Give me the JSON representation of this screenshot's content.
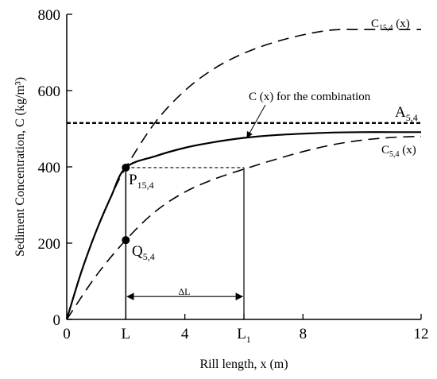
{
  "chart_data": {
    "type": "line",
    "title": "",
    "xlabel": "Rill length, x (m)",
    "ylabel": "Sediment Concentration, C (kg/m³)",
    "xlim": [
      0,
      12
    ],
    "ylim": [
      0,
      800
    ],
    "grid": false,
    "x_ticks": [
      {
        "value": 0,
        "label": "0"
      },
      {
        "value": 2,
        "label": "L"
      },
      {
        "value": 4,
        "label": "4"
      },
      {
        "value": 6,
        "label": "L₁"
      },
      {
        "value": 8,
        "label": "8"
      },
      {
        "value": 12,
        "label": "12"
      }
    ],
    "y_ticks": [
      {
        "value": 0,
        "label": "0"
      },
      {
        "value": 200,
        "label": "200"
      },
      {
        "value": 400,
        "label": "400"
      },
      {
        "value": 600,
        "label": "600"
      },
      {
        "value": 800,
        "label": "800"
      }
    ],
    "series": [
      {
        "name": "C₁₅,₄ (x)",
        "style": "dashed",
        "x": [
          0,
          0.5,
          1,
          1.5,
          2,
          3,
          4,
          5,
          6,
          7,
          8,
          9,
          10,
          11,
          12
        ],
        "y": [
          0,
          126,
          232,
          322,
          398,
          517,
          600,
          658,
          698,
          726,
          746,
          759,
          760,
          760,
          760
        ]
      },
      {
        "name": "C₅,₄ (x)",
        "style": "dashed",
        "x": [
          0,
          1,
          2,
          3,
          4,
          5,
          6,
          7,
          8,
          9,
          10,
          11,
          12
        ],
        "y": [
          0,
          115,
          208,
          283,
          334,
          368,
          394,
          418,
          440,
          458,
          470,
          477,
          480
        ]
      },
      {
        "name": "C (x) for the combination",
        "style": "solid",
        "x": [
          0,
          0.5,
          1,
          1.5,
          2,
          3,
          4,
          5,
          6,
          7,
          8,
          9,
          10,
          11,
          12
        ],
        "y": [
          0,
          126,
          232,
          322,
          398,
          428,
          450,
          465,
          476,
          483,
          487,
          490,
          491,
          491,
          491
        ]
      },
      {
        "name": "A₅,₄",
        "style": "dotted",
        "x": [
          0,
          12
        ],
        "y": [
          515,
          515
        ]
      }
    ],
    "points": [
      {
        "label": "P₁₅,₄",
        "x": 2,
        "y": 398
      },
      {
        "label": "Q₅,₄",
        "x": 2,
        "y": 208
      }
    ],
    "reference_lines": {
      "P_horizontal": {
        "x": [
          2,
          6
        ],
        "y": 398
      },
      "L1_vertical": {
        "x": 6,
        "y": [
          0,
          398
        ]
      },
      "L_vertical": {
        "x": 2,
        "y": [
          0,
          398
        ]
      }
    },
    "dimension": {
      "label": "ΔL",
      "x_start": 2,
      "x_end": 6,
      "y": 60
    }
  }
}
